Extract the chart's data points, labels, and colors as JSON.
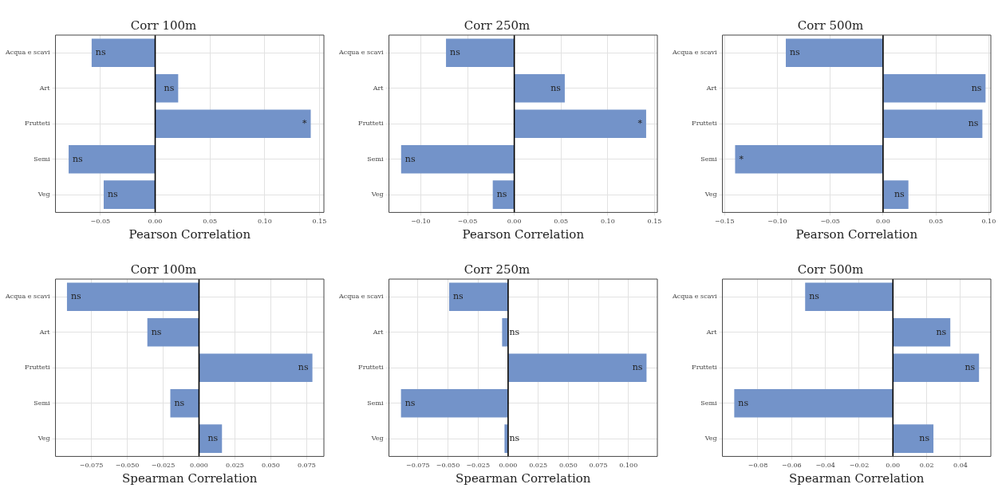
{
  "chart_data": [
    {
      "type": "bar",
      "orientation": "horizontal",
      "title": "Corr 100m",
      "xlabel": "Pearson Correlation",
      "categories": [
        "Acqua e scavi",
        "Art",
        "Frutteti",
        "Semi",
        "Veg"
      ],
      "values": [
        -0.058,
        0.021,
        0.142,
        -0.079,
        -0.047
      ],
      "value_labels": [
        "ns",
        "ns",
        "*",
        "ns",
        "ns"
      ],
      "color": "#7393c9",
      "xlim": [
        -0.091,
        0.154
      ],
      "xticks": [
        {
          "value": -0.05,
          "label": "−0.05"
        },
        {
          "value": 0,
          "label": "0.00"
        },
        {
          "value": 0.05,
          "label": "0.05"
        },
        {
          "value": 0.1,
          "label": "0.10"
        },
        {
          "value": 0.15,
          "label": "0.15"
        }
      ],
      "grid": true,
      "ref_lines": [
        {
          "axis": "x",
          "value": 0,
          "color": "#000000"
        }
      ]
    },
    {
      "type": "bar",
      "orientation": "horizontal",
      "title": "Corr 250m",
      "xlabel": "Pearson Correlation",
      "categories": [
        "Acqua e scavi",
        "Art",
        "Frutteti",
        "Semi",
        "Veg"
      ],
      "values": [
        -0.073,
        0.054,
        0.141,
        -0.121,
        -0.023
      ],
      "value_labels": [
        "ns",
        "ns",
        "*",
        "ns",
        "ns"
      ],
      "color": "#7393c9",
      "xlim": [
        -0.134,
        0.153
      ],
      "xticks": [
        {
          "value": -0.1,
          "label": "−0.10"
        },
        {
          "value": -0.05,
          "label": "−0.05"
        },
        {
          "value": 0,
          "label": "0.00"
        },
        {
          "value": 0.05,
          "label": "0.05"
        },
        {
          "value": 0.1,
          "label": "0.10"
        },
        {
          "value": 0.15,
          "label": "0.15"
        }
      ],
      "grid": true,
      "ref_lines": [
        {
          "axis": "x",
          "value": 0,
          "color": "#000000"
        }
      ]
    },
    {
      "type": "bar",
      "orientation": "horizontal",
      "title": "Corr 500m",
      "xlabel": "Pearson Correlation",
      "categories": [
        "Acqua e scavi",
        "Art",
        "Frutteti",
        "Semi",
        "Veg"
      ],
      "values": [
        -0.092,
        0.097,
        0.094,
        -0.14,
        0.024
      ],
      "value_labels": [
        "ns",
        "ns",
        "ns",
        "*",
        "ns"
      ],
      "color": "#7393c9",
      "xlim": [
        -0.152,
        0.102
      ],
      "xticks": [
        {
          "value": -0.15,
          "label": "−0.15"
        },
        {
          "value": -0.1,
          "label": "−0.10"
        },
        {
          "value": -0.05,
          "label": "−0.05"
        },
        {
          "value": 0,
          "label": "0.00"
        },
        {
          "value": 0.05,
          "label": "0.05"
        },
        {
          "value": 0.1,
          "label": "0.10"
        }
      ],
      "grid": true,
      "ref_lines": [
        {
          "axis": "x",
          "value": 0,
          "color": "#000000"
        }
      ]
    },
    {
      "type": "bar",
      "orientation": "horizontal",
      "title": "Corr 100m",
      "xlabel": "Spearman Correlation",
      "categories": [
        "Acqua e scavi",
        "Art",
        "Frutteti",
        "Semi",
        "Veg"
      ],
      "values": [
        -0.092,
        -0.036,
        0.079,
        -0.02,
        0.016
      ],
      "value_labels": [
        "ns",
        "ns",
        "ns",
        "ns",
        "ns"
      ],
      "color": "#7393c9",
      "xlim": [
        -0.1,
        0.087
      ],
      "xticks": [
        {
          "value": -0.075,
          "label": "−0.075"
        },
        {
          "value": -0.05,
          "label": "−0.050"
        },
        {
          "value": -0.025,
          "label": "−0.025"
        },
        {
          "value": 0,
          "label": "0.000"
        },
        {
          "value": 0.025,
          "label": "0.025"
        },
        {
          "value": 0.05,
          "label": "0.050"
        },
        {
          "value": 0.075,
          "label": "0.075"
        }
      ],
      "grid": true,
      "ref_lines": [
        {
          "axis": "x",
          "value": 0,
          "color": "#000000"
        }
      ]
    },
    {
      "type": "bar",
      "orientation": "horizontal",
      "title": "Corr 250m",
      "xlabel": "Spearman Correlation",
      "categories": [
        "Acqua e scavi",
        "Art",
        "Frutteti",
        "Semi",
        "Veg"
      ],
      "values": [
        -0.049,
        -0.005,
        0.115,
        -0.089,
        -0.003
      ],
      "value_labels": [
        "ns",
        "ns",
        "ns",
        "ns",
        "ns"
      ],
      "color": "#7393c9",
      "xlim": [
        -0.099,
        0.124
      ],
      "xticks": [
        {
          "value": -0.075,
          "label": "−0.075"
        },
        {
          "value": -0.05,
          "label": "−0.050"
        },
        {
          "value": -0.025,
          "label": "−0.025"
        },
        {
          "value": 0,
          "label": "0.000"
        },
        {
          "value": 0.025,
          "label": "0.025"
        },
        {
          "value": 0.05,
          "label": "0.050"
        },
        {
          "value": 0.075,
          "label": "0.075"
        },
        {
          "value": 0.1,
          "label": "0.100"
        }
      ],
      "grid": true,
      "ref_lines": [
        {
          "axis": "x",
          "value": 0,
          "color": "#000000"
        }
      ]
    },
    {
      "type": "bar",
      "orientation": "horizontal",
      "title": "Corr 500m",
      "xlabel": "Spearman Correlation",
      "categories": [
        "Acqua e scavi",
        "Art",
        "Frutteti",
        "Semi",
        "Veg"
      ],
      "values": [
        -0.052,
        0.034,
        0.051,
        -0.094,
        0.024
      ],
      "value_labels": [
        "ns",
        "ns",
        "ns",
        "ns",
        "ns"
      ],
      "color": "#7393c9",
      "xlim": [
        -0.101,
        0.058
      ],
      "xticks": [
        {
          "value": -0.08,
          "label": "−0.08"
        },
        {
          "value": -0.06,
          "label": "−0.06"
        },
        {
          "value": -0.04,
          "label": "−0.04"
        },
        {
          "value": -0.02,
          "label": "−0.02"
        },
        {
          "value": 0,
          "label": "0.00"
        },
        {
          "value": 0.02,
          "label": "0.02"
        },
        {
          "value": 0.04,
          "label": "0.04"
        }
      ],
      "grid": true,
      "ref_lines": [
        {
          "axis": "x",
          "value": 0,
          "color": "#000000"
        }
      ]
    }
  ]
}
